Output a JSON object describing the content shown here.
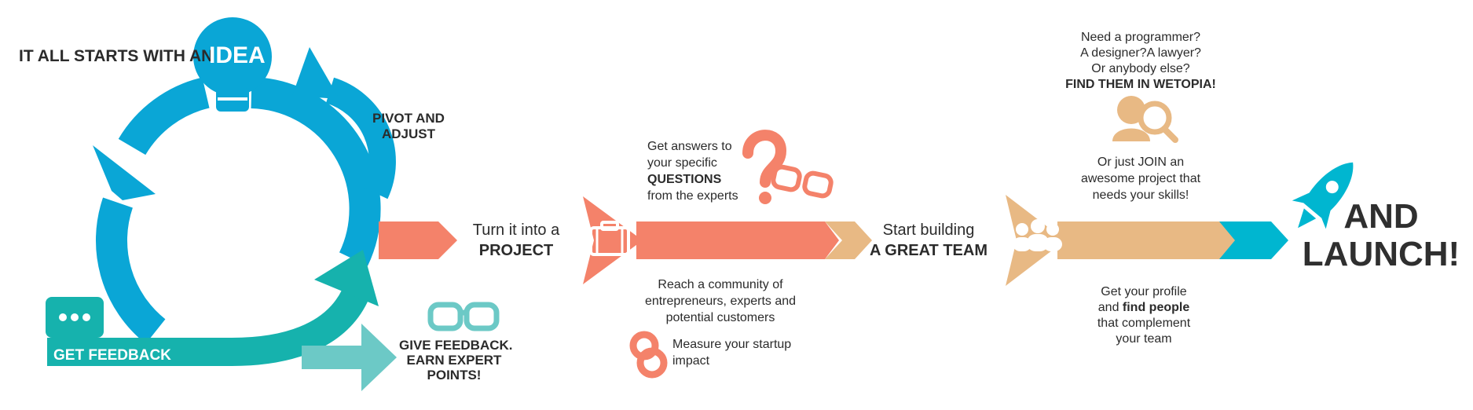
{
  "idea": {
    "prefix": "IT ALL STARTS WITH AN",
    "word": "IDEA"
  },
  "pivot": {
    "line1": "PIVOT AND",
    "line2": "ADJUST"
  },
  "feedback": {
    "label": "GET FEEDBACK"
  },
  "expert": {
    "line1": "GIVE FEEDBACK.",
    "line2": "EARN EXPERT",
    "line3": "POINTS!"
  },
  "project": {
    "line1": "Turn it into a",
    "line2": "PROJECT"
  },
  "questions": {
    "line1": "Get answers to",
    "line2": "your specific",
    "line3": "QUESTIONS",
    "line4": "from the experts"
  },
  "community": {
    "line1": "Reach a community of",
    "line2": "entrepreneurs, experts and",
    "line3": "potential customers"
  },
  "impact": {
    "line1": "Measure your startup",
    "line2": "impact"
  },
  "team": {
    "line1": "Start building",
    "line2": "A GREAT TEAM"
  },
  "find": {
    "line1": "Need a programmer?",
    "line2": "A designer?A lawyer?",
    "line3": "Or anybody else?",
    "line4": "FIND THEM IN WETOPIA!"
  },
  "join": {
    "line1": "Or just JOIN an",
    "line2": "awesome project that",
    "line3": "needs your skills!"
  },
  "profile": {
    "line1": "Get your profile",
    "line2a": "and ",
    "line2b": "find people",
    "line3": "that complement",
    "line4": "your team"
  },
  "launch": {
    "line1": "AND",
    "line2": "LAUNCH!"
  },
  "icons": [
    "lightbulb-icon",
    "chat-bubble-icon",
    "glasses-icon",
    "briefcase-icon",
    "question-mark-icon",
    "ampersand-icon",
    "team-people-icon",
    "person-search-icon",
    "rocket-icon"
  ],
  "colors": {
    "blue": "#0aa6d6",
    "teal": "#16b2ad",
    "teal_light": "#6cc9c6",
    "coral": "#f4826a",
    "tan": "#e8b984",
    "cyan": "#00b6d0",
    "text": "#2b2b2b"
  }
}
